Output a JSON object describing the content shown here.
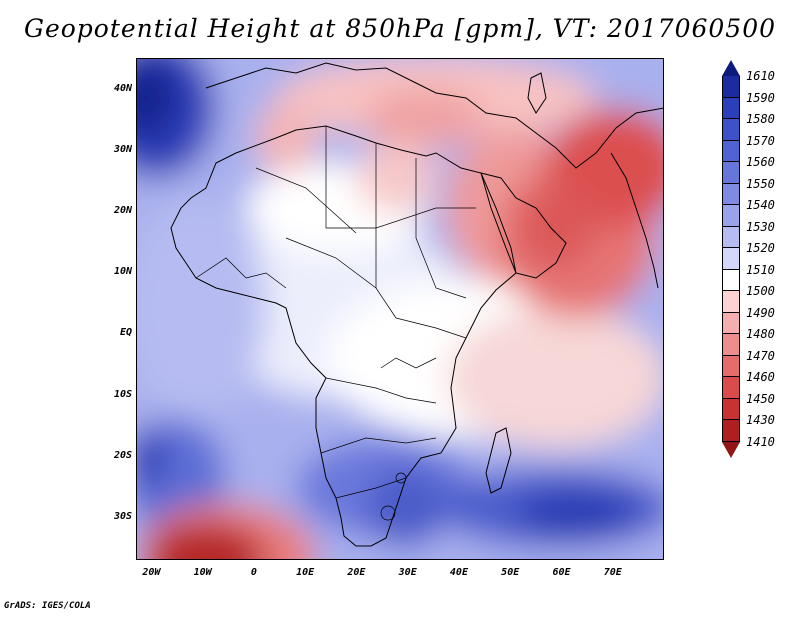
{
  "title": "Geopotential Height at 850hPa [gpm], VT: 2017060500",
  "credit": "GrADS: IGES/COLA",
  "map": {
    "lon_range": [
      -23,
      80
    ],
    "lat_range": [
      -37,
      45
    ],
    "lat_labels": [
      "40N",
      "30N",
      "20N",
      "10N",
      "EQ",
      "10S",
      "20S",
      "30S"
    ],
    "lat_values": [
      40,
      30,
      20,
      10,
      0,
      -10,
      -20,
      -30
    ],
    "lon_labels": [
      "20W",
      "10W",
      "0",
      "10E",
      "20E",
      "30E",
      "40E",
      "50E",
      "60E",
      "70E"
    ],
    "lon_values": [
      -20,
      -10,
      0,
      10,
      20,
      30,
      40,
      50,
      60,
      70
    ]
  },
  "colorbar": {
    "labels": [
      "1610",
      "1590",
      "1580",
      "1570",
      "1560",
      "1550",
      "1540",
      "1530",
      "1520",
      "1510",
      "1500",
      "1490",
      "1480",
      "1470",
      "1460",
      "1450",
      "1430",
      "1410"
    ],
    "colors": [
      "#0c1a7e",
      "#1a2ca0",
      "#2b3fba",
      "#3d52c8",
      "#5163d2",
      "#6676db",
      "#7f8be3",
      "#9aa3ea",
      "#b6bcf1",
      "#d4d7f8",
      "#ffffff",
      "#fcd2d2",
      "#f5aeae",
      "#ee8d8d",
      "#e66b6b",
      "#da4b4b",
      "#c83232",
      "#b01f1f",
      "#921414"
    ]
  }
}
